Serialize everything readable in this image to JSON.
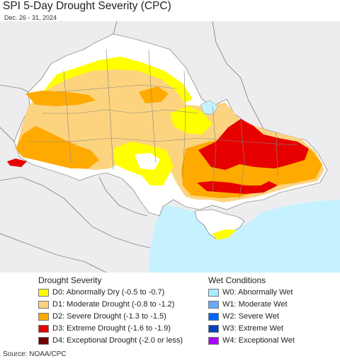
{
  "title": "SPI 5-Day Drought Severity (CPC)",
  "subtitle": "Dec. 26 - 31, 2024",
  "drought_legend": {
    "title": "Drought Severity",
    "items": [
      {
        "label": "D0: Abnormally Dry (-0.5 to -0.7)",
        "color": "#ffff00"
      },
      {
        "label": "D1: Moderate Drought (-0.8 to -1.2)",
        "color": "#fcd37f"
      },
      {
        "label": "D2: Severe Drought (-1.3 to -1.5)",
        "color": "#ffaa00"
      },
      {
        "label": "D3: Extreme Drought (-1.6 to -1.9)",
        "color": "#e60000"
      },
      {
        "label": "D4: Exceptional Drought (-2.0 or less)",
        "color": "#730000"
      }
    ]
  },
  "wet_legend": {
    "title": "Wet Conditions",
    "items": [
      {
        "label": "W0: Abnormally Wet",
        "color": "#aaeeff"
      },
      {
        "label": "W1: Moderate Wet",
        "color": "#66aaff"
      },
      {
        "label": "W2: Severe Wet",
        "color": "#0066ff"
      },
      {
        "label": "W3: Extreme Wet",
        "color": "#0044bb"
      },
      {
        "label": "W4: Exceptional Wet",
        "color": "#aa00ff"
      }
    ]
  },
  "source": "Source: NOAA/CPC",
  "map_colors": {
    "sea": "#c6f2ff",
    "land_outside": "#ededf0",
    "none": "#ffffff",
    "d0": "#ffff00",
    "d1": "#fcd37f",
    "d2": "#ffaa00",
    "d3": "#e60000"
  }
}
